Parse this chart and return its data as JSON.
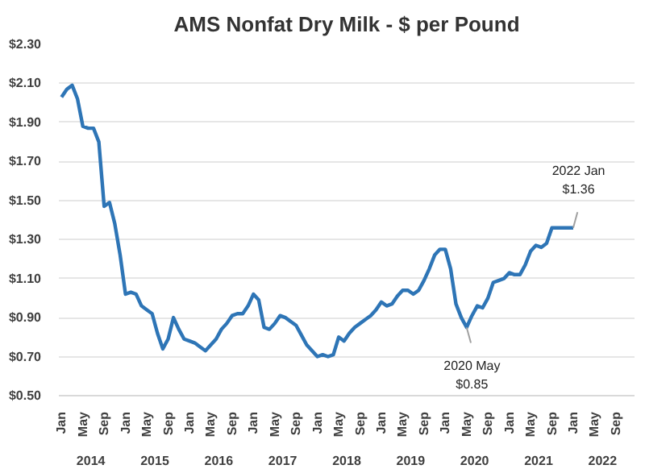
{
  "chart_data": {
    "type": "line",
    "title": "AMS Nonfat Dry Milk - $ per Pound",
    "x": [
      "2014-01",
      "2014-02",
      "2014-03",
      "2014-04",
      "2014-05",
      "2014-06",
      "2014-07",
      "2014-08",
      "2014-09",
      "2014-10",
      "2014-11",
      "2014-12",
      "2015-01",
      "2015-02",
      "2015-03",
      "2015-04",
      "2015-05",
      "2015-06",
      "2015-07",
      "2015-08",
      "2015-09",
      "2015-10",
      "2015-11",
      "2015-12",
      "2016-01",
      "2016-02",
      "2016-03",
      "2016-04",
      "2016-05",
      "2016-06",
      "2016-07",
      "2016-08",
      "2016-09",
      "2016-10",
      "2016-11",
      "2016-12",
      "2017-01",
      "2017-02",
      "2017-03",
      "2017-04",
      "2017-05",
      "2017-06",
      "2017-07",
      "2017-08",
      "2017-09",
      "2017-10",
      "2017-11",
      "2017-12",
      "2018-01",
      "2018-02",
      "2018-03",
      "2018-04",
      "2018-05",
      "2018-06",
      "2018-07",
      "2018-08",
      "2018-09",
      "2018-10",
      "2018-11",
      "2018-12",
      "2019-01",
      "2019-02",
      "2019-03",
      "2019-04",
      "2019-05",
      "2019-06",
      "2019-07",
      "2019-08",
      "2019-09",
      "2019-10",
      "2019-11",
      "2019-12",
      "2020-01",
      "2020-02",
      "2020-03",
      "2020-04",
      "2020-05",
      "2020-06",
      "2020-07",
      "2020-08",
      "2020-09",
      "2020-10",
      "2020-11",
      "2020-12",
      "2021-01",
      "2021-02",
      "2021-03",
      "2021-04",
      "2021-05",
      "2021-06",
      "2021-07",
      "2021-08",
      "2021-09",
      "2021-10",
      "2021-11",
      "2021-12",
      "2022-01"
    ],
    "series": [
      {
        "color": "#2e75b6",
        "values": [
          2.03,
          2.07,
          2.09,
          2.02,
          1.88,
          1.87,
          1.87,
          1.8,
          1.47,
          1.49,
          1.38,
          1.22,
          1.02,
          1.03,
          1.02,
          0.96,
          0.94,
          0.92,
          0.82,
          0.74,
          0.79,
          0.9,
          0.84,
          0.79,
          0.78,
          0.77,
          0.75,
          0.73,
          0.76,
          0.79,
          0.84,
          0.87,
          0.91,
          0.92,
          0.92,
          0.96,
          1.02,
          0.99,
          0.85,
          0.84,
          0.87,
          0.91,
          0.9,
          0.88,
          0.86,
          0.81,
          0.76,
          0.73,
          0.7,
          0.71,
          0.7,
          0.71,
          0.8,
          0.78,
          0.82,
          0.85,
          0.87,
          0.89,
          0.91,
          0.94,
          0.98,
          0.96,
          0.97,
          1.01,
          1.04,
          1.04,
          1.02,
          1.04,
          1.09,
          1.15,
          1.22,
          1.25,
          1.25,
          1.15,
          0.97,
          0.9,
          0.85,
          0.91,
          0.96,
          0.95,
          1.0,
          1.08,
          1.09,
          1.1,
          1.13,
          1.12,
          1.12,
          1.17,
          1.24,
          1.27,
          1.26,
          1.28,
          1.36,
          1.36,
          1.36,
          1.36,
          1.36
        ]
      }
    ],
    "xlim": [
      "2013-12-16",
      "2022-12-16"
    ],
    "xticks": [
      {
        "value": "2014-01",
        "label": "Jan"
      },
      {
        "value": "2014-05",
        "label": "May"
      },
      {
        "value": "2014-09",
        "label": "Sep"
      },
      {
        "value": "2015-01",
        "label": "Jan"
      },
      {
        "value": "2015-05",
        "label": "May"
      },
      {
        "value": "2015-09",
        "label": "Sep"
      },
      {
        "value": "2016-01",
        "label": "Jan"
      },
      {
        "value": "2016-05",
        "label": "May"
      },
      {
        "value": "2016-09",
        "label": "Sep"
      },
      {
        "value": "2017-01",
        "label": "Jan"
      },
      {
        "value": "2017-05",
        "label": "May"
      },
      {
        "value": "2017-09",
        "label": "Sep"
      },
      {
        "value": "2018-01",
        "label": "Jan"
      },
      {
        "value": "2018-05",
        "label": "May"
      },
      {
        "value": "2018-09",
        "label": "Sep"
      },
      {
        "value": "2019-01",
        "label": "Jan"
      },
      {
        "value": "2019-05",
        "label": "May"
      },
      {
        "value": "2019-09",
        "label": "Sep"
      },
      {
        "value": "2020-01",
        "label": "Jan"
      },
      {
        "value": "2020-05",
        "label": "May"
      },
      {
        "value": "2020-09",
        "label": "Sep"
      },
      {
        "value": "2021-01",
        "label": "Jan"
      },
      {
        "value": "2021-05",
        "label": "May"
      },
      {
        "value": "2021-09",
        "label": "Sep"
      },
      {
        "value": "2022-01",
        "label": "Jan"
      },
      {
        "value": "2022-05",
        "label": "May"
      },
      {
        "value": "2022-09",
        "label": "Sep"
      }
    ],
    "ylim": [
      0.5,
      2.3
    ],
    "yticks": [
      {
        "value": 0.5,
        "label": "$0.50"
      },
      {
        "value": 0.7,
        "label": "$0.70"
      },
      {
        "value": 0.9,
        "label": "$0.90"
      },
      {
        "value": 1.1,
        "label": "$1.10"
      },
      {
        "value": 1.3,
        "label": "$1.30"
      },
      {
        "value": 1.5,
        "label": "$1.50"
      },
      {
        "value": 1.7,
        "label": "$1.70"
      },
      {
        "value": 1.9,
        "label": "$1.90"
      },
      {
        "value": 2.1,
        "label": "$2.10"
      },
      {
        "value": 2.3,
        "label": "$2.30"
      }
    ],
    "grid": "y",
    "marker": "none",
    "line_style": "solid",
    "annotations": [
      "2014",
      "2015",
      "2016",
      "2017",
      "2018",
      "2019",
      "2020",
      "2021",
      "2022",
      {
        "text": "2022 Jan\n$1.36",
        "x": "2022-01",
        "y": 1.36
      },
      {
        "text": "2020 May\n$0.85",
        "x": "2020-05",
        "y": 0.85
      }
    ]
  }
}
